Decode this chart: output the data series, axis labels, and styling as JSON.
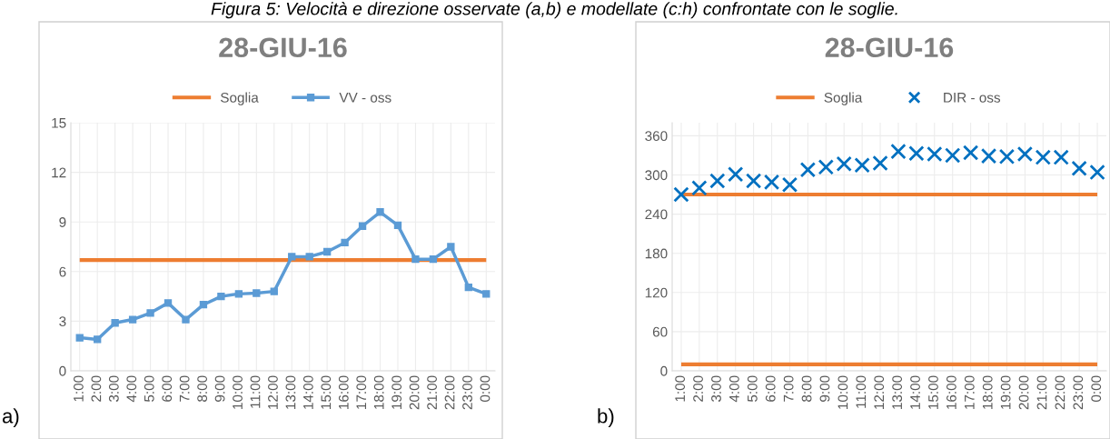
{
  "chart_data": [
    {
      "type": "line",
      "title": "28-GIU-16",
      "categories": [
        "1:00",
        "2:00",
        "3:00",
        "4:00",
        "5:00",
        "6:00",
        "7:00",
        "8:00",
        "9:00",
        "10:00",
        "11:00",
        "12:00",
        "13:00",
        "14:00",
        "15:00",
        "16:00",
        "17:00",
        "18:00",
        "19:00",
        "20:00",
        "21:00",
        "22:00",
        "23:00",
        "0:00"
      ],
      "series": [
        {
          "name": "VV - oss",
          "color": "#5b9bd5",
          "marker": "square",
          "values": [
            2.0,
            1.9,
            2.9,
            3.1,
            3.5,
            4.1,
            3.1,
            4.0,
            4.5,
            4.65,
            4.7,
            4.8,
            6.9,
            6.9,
            7.2,
            7.75,
            8.75,
            9.6,
            8.8,
            6.75,
            6.75,
            7.5,
            5.05,
            4.65
          ]
        }
      ],
      "ref_lines": [
        {
          "axis": "y",
          "value": 6.7,
          "label": "Soglia",
          "color": "#ed7d31"
        }
      ],
      "ylim": [
        0,
        15
      ],
      "yticks": [
        0,
        3,
        6,
        9,
        12,
        15
      ],
      "grid": true,
      "legend": "top",
      "annotations": [
        "Figura 5: Velocità e direzione osservate (a,b) e modellate (c:h) confrontate con le soglie.",
        "a)"
      ]
    },
    {
      "type": "scatter",
      "title": "28-GIU-16",
      "categories": [
        "1:00",
        "2:00",
        "3:00",
        "4:00",
        "5:00",
        "6:00",
        "7:00",
        "8:00",
        "9:00",
        "10:00",
        "11:00",
        "12:00",
        "13:00",
        "14:00",
        "15:00",
        "16:00",
        "17:00",
        "18:00",
        "19:00",
        "20:00",
        "21:00",
        "22:00",
        "23:00",
        "0:00"
      ],
      "series": [
        {
          "name": "DIR - oss",
          "color": "#0070c0",
          "marker": "cross",
          "values": [
            270,
            280,
            291,
            301,
            291,
            289,
            285,
            308,
            312,
            317,
            315,
            318,
            336,
            333,
            332,
            330,
            334,
            329,
            328,
            332,
            327,
            327,
            310,
            304
          ]
        }
      ],
      "ref_lines": [
        {
          "axis": "y",
          "value": 270,
          "label": "Soglia",
          "color": "#ed7d31"
        },
        {
          "axis": "y",
          "value": 10,
          "color": "#ed7d31"
        }
      ],
      "ylim": [
        0,
        380
      ],
      "yticks": [
        0,
        60,
        120,
        180,
        240,
        300,
        360
      ],
      "grid": true,
      "legend": "top",
      "annotations": [
        "b)"
      ]
    }
  ]
}
